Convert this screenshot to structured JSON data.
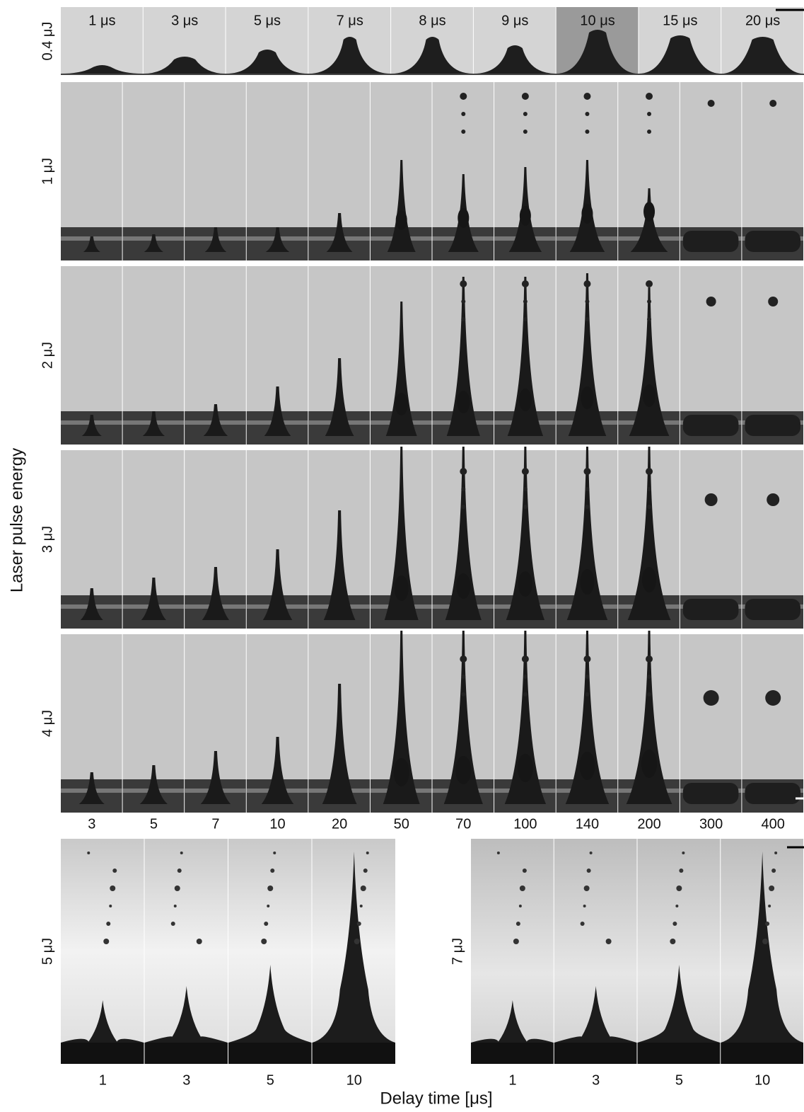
{
  "top_row": {
    "energy": "0.4 μJ",
    "times": [
      "1 μs",
      "3 μs",
      "5 μs",
      "7 μs",
      "8 μs",
      "9 μs",
      "10 μs",
      "15 μs",
      "20 μs"
    ]
  },
  "grid_rows": [
    {
      "energy": "1 μJ"
    },
    {
      "energy": "2 μJ"
    },
    {
      "energy": "3 μJ"
    },
    {
      "energy": "4 μJ"
    }
  ],
  "grid_times": [
    3,
    5,
    7,
    10,
    20,
    50,
    70,
    100,
    140,
    200,
    300,
    400
  ],
  "bottom_panels": [
    {
      "energy": "5 μJ",
      "times": [
        1,
        3,
        5,
        10
      ]
    },
    {
      "energy": "7 μJ",
      "times": [
        1,
        3,
        5,
        10
      ]
    }
  ],
  "y_axis_label": "Laser pulse energy",
  "x_axis_label": "Delay time [μs]"
}
